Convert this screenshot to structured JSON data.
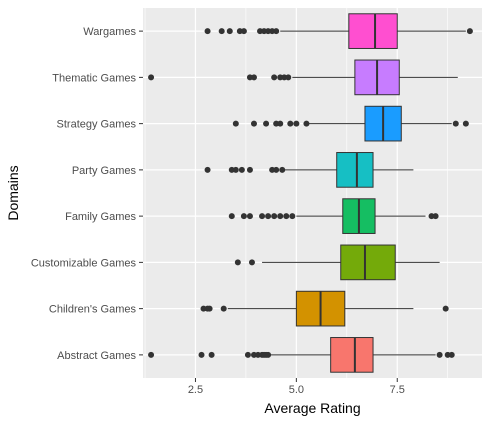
{
  "chart_data": {
    "type": "boxplot",
    "orientation": "horizontal",
    "title": "",
    "xlabel": "Average Rating",
    "ylabel": "Domains",
    "xlim": [
      1.2,
      9.6
    ],
    "x_ticks": [
      2.5,
      5.0,
      7.5
    ],
    "x_tick_labels": [
      "2.5",
      "5.0",
      "7.5"
    ],
    "grid": true,
    "legend": "none",
    "panel_background": "#ebebeb",
    "grid_color": "#ffffff",
    "categories": [
      "Wargames",
      "Thematic Games",
      "Strategy Games",
      "Party Games",
      "Family Games",
      "Customizable Games",
      "Children's Games",
      "Abstract Games"
    ],
    "series": [
      {
        "category": "Wargames",
        "color": "#ff4fd0",
        "q1": 6.3,
        "median": 6.95,
        "q3": 7.5,
        "whisker_low": 4.6,
        "whisker_high": 9.2,
        "outliers": [
          2.8,
          3.15,
          3.35,
          3.6,
          3.7,
          4.1,
          4.2,
          4.3,
          4.4,
          4.5,
          9.3
        ]
      },
      {
        "category": "Thematic Games",
        "color": "#c77cff",
        "q1": 6.45,
        "median": 7.0,
        "q3": 7.55,
        "whisker_low": 4.9,
        "whisker_high": 9.0,
        "outliers": [
          1.4,
          3.85,
          3.95,
          4.45,
          4.6,
          4.7,
          4.8
        ]
      },
      {
        "category": "Strategy Games",
        "color": "#1a9cff",
        "q1": 6.7,
        "median": 7.15,
        "q3": 7.6,
        "whisker_low": 5.3,
        "whisker_high": 8.85,
        "outliers": [
          3.5,
          3.95,
          4.25,
          4.5,
          4.6,
          4.85,
          5.0,
          5.25,
          8.95,
          9.2
        ]
      },
      {
        "category": "Party Games",
        "color": "#16bfc4",
        "q1": 6.0,
        "median": 6.5,
        "q3": 6.9,
        "whisker_low": 4.7,
        "whisker_high": 7.9,
        "outliers": [
          2.8,
          3.4,
          3.5,
          3.65,
          3.85,
          4.4,
          4.5,
          4.65
        ]
      },
      {
        "category": "Family Games",
        "color": "#15be62",
        "q1": 6.15,
        "median": 6.55,
        "q3": 6.95,
        "whisker_low": 5.0,
        "whisker_high": 8.2,
        "outliers": [
          3.4,
          3.7,
          3.85,
          4.15,
          4.3,
          4.45,
          4.6,
          4.75,
          4.9,
          8.35,
          8.45
        ]
      },
      {
        "category": "Customizable Games",
        "color": "#74aa0a",
        "q1": 6.1,
        "median": 6.7,
        "q3": 7.45,
        "whisker_low": 4.15,
        "whisker_high": 8.55,
        "outliers": [
          3.55,
          3.9
        ]
      },
      {
        "category": "Children's Games",
        "color": "#d39200",
        "q1": 5.0,
        "median": 5.6,
        "q3": 6.2,
        "whisker_low": 3.3,
        "whisker_high": 7.9,
        "outliers": [
          2.7,
          2.8,
          2.85,
          3.2,
          8.7
        ]
      },
      {
        "category": "Abstract Games",
        "color": "#f8766d",
        "q1": 5.85,
        "median": 6.45,
        "q3": 6.9,
        "whisker_low": 4.35,
        "whisker_high": 8.45,
        "outliers": [
          1.4,
          2.65,
          2.9,
          3.8,
          3.95,
          4.05,
          4.15,
          4.2,
          4.25,
          4.3,
          8.55,
          8.75,
          8.85
        ]
      }
    ]
  }
}
